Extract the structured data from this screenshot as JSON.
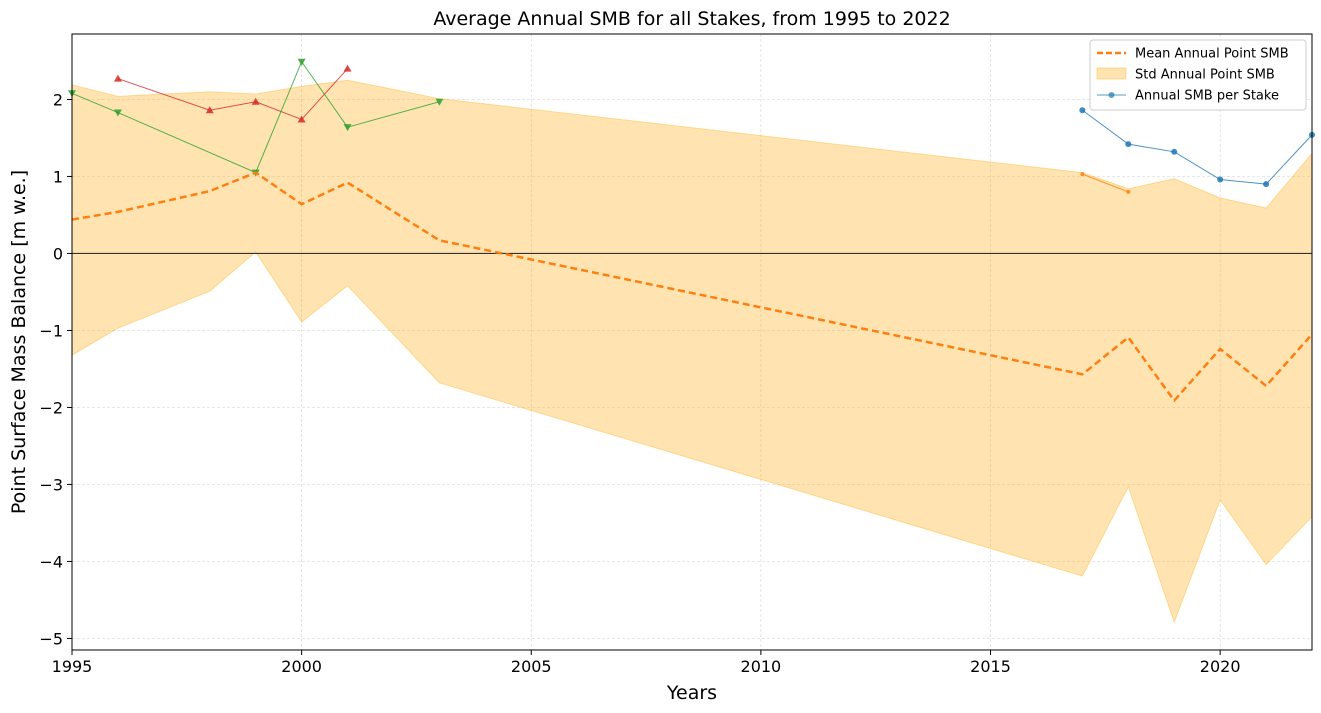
{
  "chart_data": {
    "type": "line",
    "title": "Average Annual SMB for all Stakes, from 1995 to 2022",
    "xlabel": "Years",
    "ylabel": "Point Surface Mass Balance [m w.e.]",
    "xlim": [
      1995,
      2022
    ],
    "ylim": [
      -5.15,
      2.85
    ],
    "xticks": [
      1995,
      2000,
      2005,
      2010,
      2015,
      2020
    ],
    "yticks": [
      -5,
      -4,
      -3,
      -2,
      -1,
      0,
      1,
      2
    ],
    "grid": true,
    "legend_position": "top-right",
    "legend": [
      {
        "label": "Mean Annual Point SMB",
        "kind": "dashed-line",
        "color": "#ff7f0e"
      },
      {
        "label": "Std Annual Point SMB",
        "kind": "band",
        "color": "#ffa500"
      },
      {
        "label": "Annual SMB per Stake",
        "kind": "marker-line",
        "color": "#1f77b4"
      }
    ],
    "mean": {
      "color": "#ff7f0e",
      "x": [
        1995,
        1996,
        1998,
        1999,
        2000,
        2001,
        2003,
        2017,
        2018,
        2019,
        2020,
        2021,
        2022
      ],
      "y": [
        0.44,
        0.54,
        0.81,
        1.05,
        0.64,
        0.92,
        0.17,
        -1.57,
        -1.09,
        -1.91,
        -1.24,
        -1.72,
        -1.05
      ]
    },
    "std_band": {
      "color": "#ffa500",
      "x": [
        1995,
        1996,
        1998,
        1999,
        2000,
        2001,
        2003,
        2017,
        2018,
        2019,
        2020,
        2021,
        2022
      ],
      "upper": [
        2.19,
        2.04,
        2.1,
        2.07,
        2.17,
        2.25,
        2.01,
        1.05,
        0.84,
        0.97,
        0.72,
        0.59,
        1.3
      ],
      "lower": [
        -1.32,
        -0.97,
        -0.49,
        0.02,
        -0.89,
        -0.42,
        -1.68,
        -4.19,
        -3.03,
        -4.79,
        -3.2,
        -4.04,
        -3.42
      ]
    },
    "stakes": [
      {
        "color": "#d62728",
        "marker": "triangle-up",
        "x": [
          1996,
          1998,
          1999,
          2000,
          2001
        ],
        "y": [
          2.27,
          1.86,
          1.97,
          1.74,
          2.4
        ]
      },
      {
        "color": "#2ca02c",
        "marker": "triangle-down",
        "x": [
          1995,
          1996,
          1999,
          2000,
          2001,
          2003
        ],
        "y": [
          2.08,
          1.83,
          1.05,
          2.49,
          1.64,
          1.97
        ]
      },
      {
        "color": "#1f77b4",
        "marker": "circle",
        "x": [
          2017,
          2018,
          2019,
          2020,
          2021,
          2022
        ],
        "y": [
          1.86,
          1.42,
          1.32,
          0.96,
          0.9,
          1.54
        ]
      },
      {
        "color": "#ff7f0e",
        "marker": "circle",
        "x": [
          2017,
          2018
        ],
        "y": [
          1.03,
          0.8
        ]
      }
    ]
  }
}
